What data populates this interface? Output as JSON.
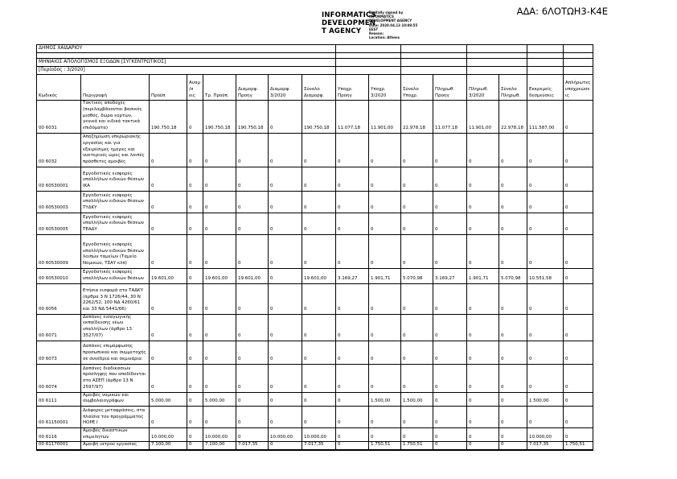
{
  "header": {
    "ada_label": "ΑΔΑ: 6ΛΟΤΩΗ3-Κ4Ε",
    "agency_logo_line1": "INFORMATICS",
    "agency_logo_line2": "DEVELOPMEN",
    "agency_logo_line3": "T AGENCY",
    "signature_lines": [
      "Digitally signed by",
      "INFORMATICS",
      "DEVELOPMENT AGENCY",
      "Date: 2020.04.13 10:08:55",
      "EEST",
      "Reason:",
      "Location: Athens"
    ]
  },
  "report": {
    "organization": "ΔΗΜΟΣ ΧΑΪΔΑΡΙΟΥ",
    "title": "ΜΗΝΙΑΙΟΣ ΑΠΟΛΟΓΙΣΜΟΣ ΕΞΟΔΩΝ [ΣΥΓΚΕΝΤΡΩΤΙΚΟΣ]",
    "period": "[Περίοδος : 3/2020]"
  },
  "table": {
    "headers": [
      "Κωδικός",
      "Περιγραφή",
      "Προϋπ",
      "Αναμ/σ εις",
      "Τρ. Προϋπ.",
      "Διαμορφ. Προηγ",
      "Διαμορφ. 3/2020",
      "Σύνολο Διαμορφ.",
      "Υποχρ. Προηγ",
      "Υποχρ. 3/2020",
      "Σύνολο Υποχρ.",
      "Πληρωθ. Προηγ",
      "Πληρωθ. 3/2020",
      "Σύνολο Πληρωθ.",
      "Εκκρεμείς δεσμεύσεις",
      "Απλήρωτες υποχρεώσεις"
    ],
    "rows": [
      {
        "code": "00 6031",
        "desc": "Τακτικές αποδοχές (περιλαμβάνονται βασικός μισθός, δώρα εορτών, γενικά και ειδικά τακτικά επιδόματα)",
        "values": [
          "190.750,18",
          "0",
          "190.750,18",
          "190.750,18",
          "0",
          "190.750,18",
          "11.077,18",
          "11.901,00",
          "22.978,18",
          "11.077,18",
          "11.901,00",
          "22.978,18",
          "111.587,00",
          "0"
        ]
      },
      {
        "code": "00 6032",
        "desc": "Αποζημίωση υπερωριακής εργασίας και για εξαιρέσιμες ημέρες και νυκτερινές ώρες και λοιπές πρόσθετες αμοιβές",
        "values": [
          "0",
          "0",
          "0",
          "0",
          "0",
          "0",
          "0",
          "0",
          "0",
          "0",
          "0",
          "0",
          "0",
          "0"
        ]
      },
      {
        "code": "00 60530001",
        "desc": "Εργοδοτικές εισφορές υπαλλήλων ειδικών θέσεων ΙΚΑ",
        "values": [
          "0",
          "0",
          "0",
          "0",
          "0",
          "0",
          "0",
          "0",
          "0",
          "0",
          "0",
          "0",
          "0",
          "0"
        ]
      },
      {
        "code": "00 60530003",
        "desc": "Εργοδοτικές εισφορές υπαλλήλων ειδικών θέσεων ΤΥΔΚΥ",
        "values": [
          "0",
          "0",
          "0",
          "0",
          "0",
          "0",
          "0",
          "0",
          "0",
          "0",
          "0",
          "0",
          "0",
          "0"
        ]
      },
      {
        "code": "00 60530005",
        "desc": "Εργοδοτικές εισφορές υπαλλήλων ειδικών θέσεων ΤΕΑΔΥ",
        "values": [
          "0",
          "0",
          "0",
          "0",
          "0",
          "0",
          "0",
          "0",
          "0",
          "0",
          "0",
          "0",
          "0",
          "0"
        ]
      },
      {
        "code": "00 60530009",
        "desc": "Εργοδοτικές εισφορές υπαλλήλων ειδικών θέσεων λοιπών ταμείων (Ταμείο Νομικών, ΤΣΑΥ κλπ)",
        "values": [
          "0",
          "0",
          "0",
          "0",
          "0",
          "0",
          "0",
          "0",
          "0",
          "0",
          "0",
          "0",
          "0",
          "0"
        ]
      },
      {
        "code": "00 60530010",
        "desc": "Εργοδοτικές εισφορές υπαλλήλων ειδικών θέσεων",
        "values": [
          "19.601,00",
          "0",
          "19.601,00",
          "19.601,00",
          "0",
          "19.601,00",
          "3.169,27",
          "1.901,71",
          "5.070,98",
          "3.169,27",
          "1.901,71",
          "5.070,98",
          "10.551,58",
          "0"
        ]
      },
      {
        "code": "00 6056",
        "desc": "Ετήσια εισφορά στο ΤΑΔΚΥ (άρθρα 3 Ν 1726/44, 30 Ν 2262/52, 100 ΝΔ 4260/61 και 33 ΝΔ 5441/66)",
        "values": [
          "0",
          "0",
          "0",
          "0",
          "0",
          "0",
          "0",
          "0",
          "0",
          "0",
          "0",
          "0",
          "0",
          "0"
        ]
      },
      {
        "code": "00 6071",
        "desc": "Δαπάνες εισαγωγικής εκπαίδευσης νέων υπαλλήλων (άρθρο 13 3527/07)",
        "values": [
          "0",
          "0",
          "0",
          "0",
          "0",
          "0",
          "0",
          "0",
          "0",
          "0",
          "0",
          "0",
          "0",
          "0"
        ]
      },
      {
        "code": "00 6073",
        "desc": "Δαπάνες επιμόρφωσης προσωπικού και συμμετοχής σε συνέδρια και σεμινάρια",
        "values": [
          "0",
          "0",
          "0",
          "0",
          "0",
          "0",
          "0",
          "0",
          "0",
          "0",
          "0",
          "0",
          "0",
          "0"
        ]
      },
      {
        "code": "00 6074",
        "desc": "Δαπάνες διαδικασιών πρόσληψης που αποδίδονται στο ΑΣΕΠ (άρθρο 13 Ν 2597/97)",
        "values": [
          "0",
          "0",
          "0",
          "0",
          "0",
          "0",
          "0",
          "0",
          "0",
          "0",
          "0",
          "0",
          "0",
          "0"
        ]
      },
      {
        "code": "00 6111",
        "desc": "Αμοιβές νομικών και συμβολαιογράφων",
        "values": [
          "5.000,00",
          "0",
          "5.000,00",
          "0",
          "0",
          "0",
          "0",
          "1.500,00",
          "1.500,00",
          "0",
          "0",
          "0",
          "1.500,00",
          "0"
        ]
      },
      {
        "code": "00 61150001",
        "desc": "Διάφορες μεταφράσεις, στα πλαίσια του προγράμματος HOPE I",
        "values": [
          "0",
          "0",
          "0",
          "0",
          "0",
          "0",
          "0",
          "0",
          "0",
          "0",
          "0",
          "0",
          "0",
          "0"
        ]
      },
      {
        "code": "00 6116",
        "desc": "Αμοιβές δικαστικών επιμελητών",
        "values": [
          "10.000,00",
          "0",
          "10.000,00",
          "0",
          "10.000,00",
          "10.000,00",
          "0",
          "0",
          "0",
          "0",
          "0",
          "0",
          "10.000,00",
          "0"
        ]
      },
      {
        "code": "00 61170001",
        "desc": "Αμοιβή ιατρού εργασίας",
        "values": [
          "7.100,00",
          "0",
          "7.100,00",
          "7.017,35",
          "0",
          "7.017,35",
          "0",
          "1.750,51",
          "1.750,51",
          "0",
          "0",
          "0",
          "7.017,35",
          "1.750,51"
        ]
      }
    ]
  }
}
